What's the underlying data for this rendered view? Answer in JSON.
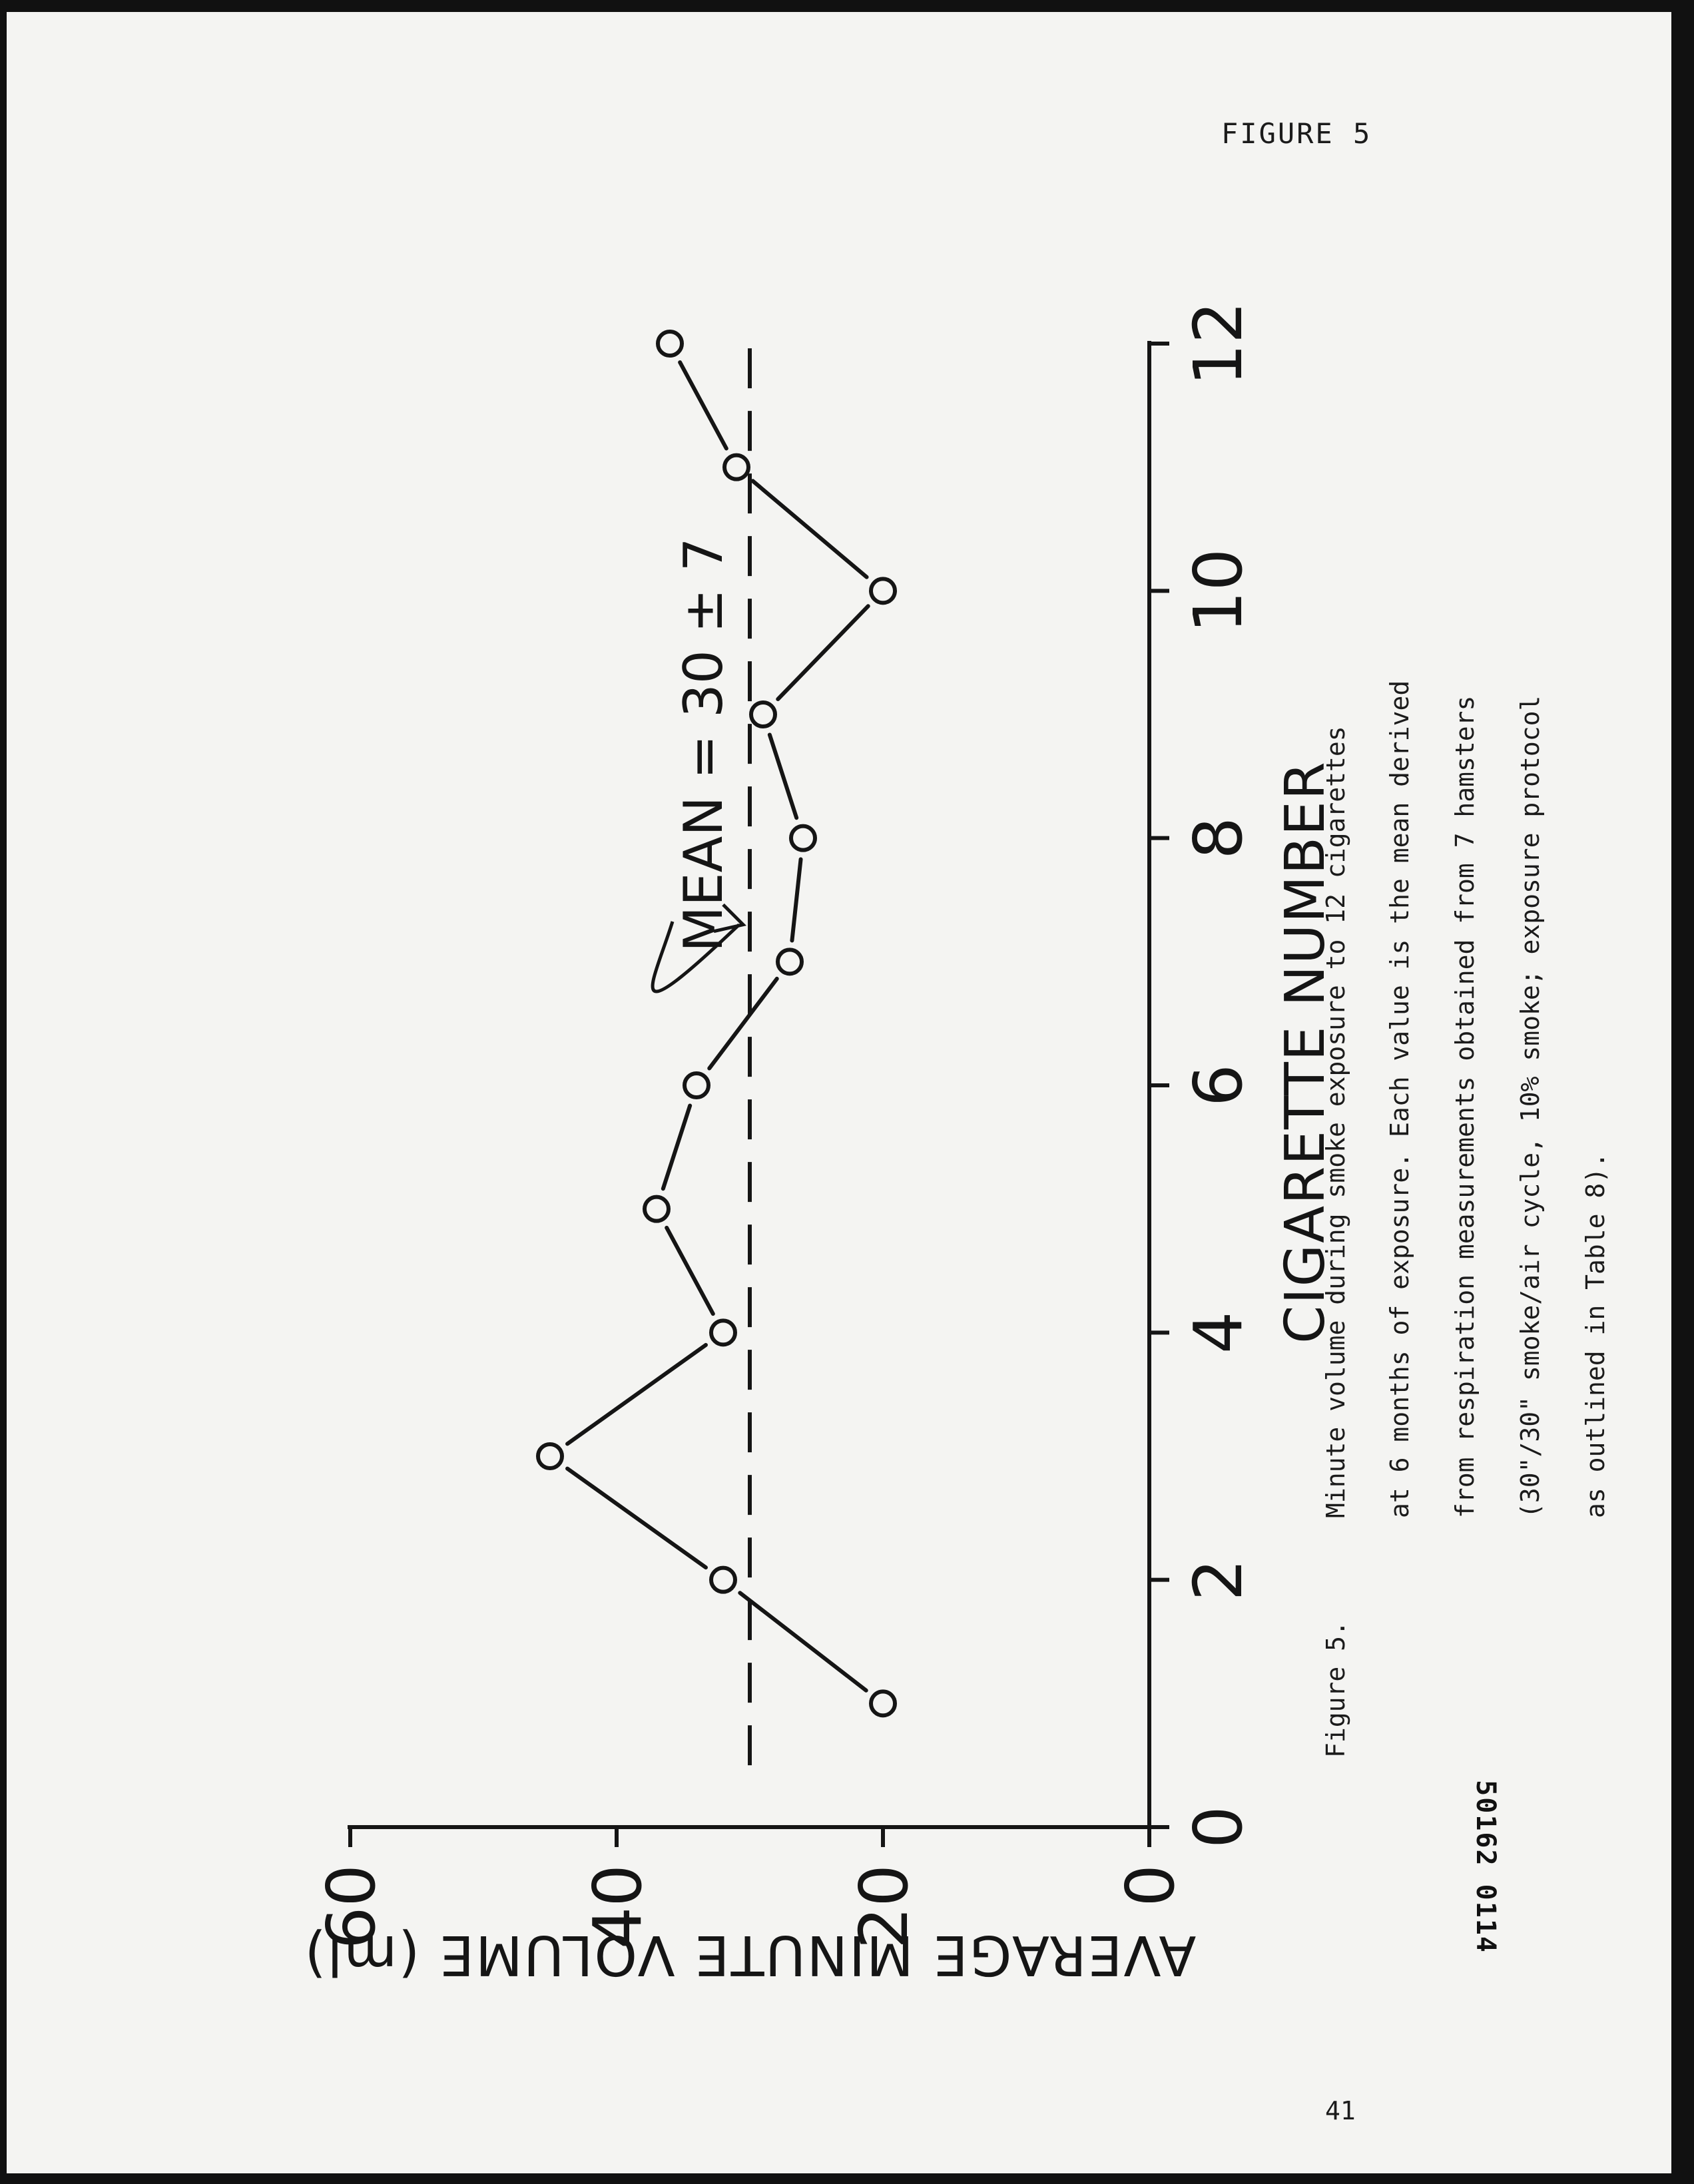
{
  "header": {
    "figure_label": "FIGURE 5"
  },
  "caption": {
    "prefix": "Figure 5.",
    "lines": [
      "Minute volume during smoke exposure to 12 cigarettes",
      "at 6 months of exposure.  Each value is the mean derived",
      "from respiration measurements obtained from 7 hamsters",
      "(30\"/30\" smoke/air cycle, 10% smoke; exposure protocol",
      "as outlined in Table 8)."
    ]
  },
  "document_id": "50162 0114",
  "page_number": "41",
  "chart_data": {
    "type": "line",
    "xlabel": "CIGARETTE NUMBER",
    "ylabel": "AVERAGE MINUTE VOLUME (ml)",
    "xlim": [
      0,
      12
    ],
    "ylim": [
      0,
      60
    ],
    "x_ticks": [
      0,
      2,
      4,
      6,
      8,
      10,
      12
    ],
    "y_ticks": [
      0,
      20,
      40,
      60
    ],
    "x_tick_labels": [
      "0",
      "2",
      "4",
      "6",
      "8",
      "10",
      "12"
    ],
    "y_tick_labels": [
      "0",
      "20",
      "40",
      "60"
    ],
    "grid": false,
    "series": [
      {
        "x": [
          1,
          2,
          3,
          4,
          5,
          6,
          7,
          8,
          9,
          10,
          11,
          12
        ],
        "y": [
          20,
          32,
          45,
          32,
          37,
          34,
          27,
          26,
          29,
          20,
          31,
          36
        ],
        "marker": "open-circle",
        "line_style": "solid",
        "color": "#151515"
      }
    ],
    "mean_line": {
      "y": 30,
      "style": "dashed"
    },
    "annotations": [
      {
        "text": "MEAN = 30 ± 7"
      }
    ]
  }
}
